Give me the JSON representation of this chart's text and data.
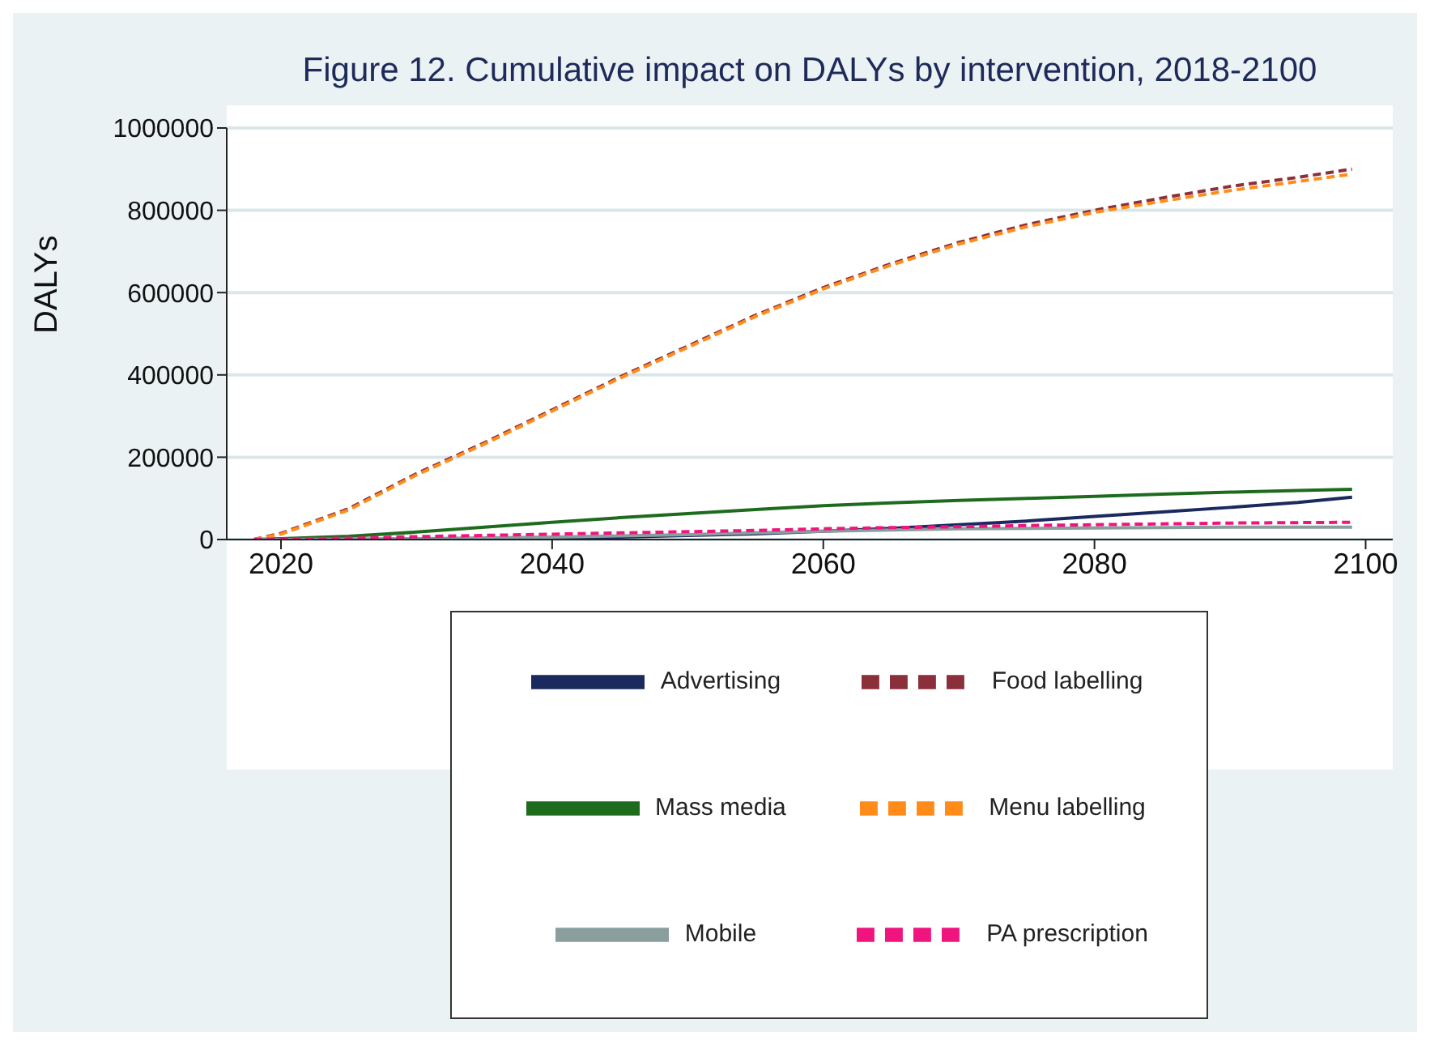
{
  "chart_data": {
    "type": "line",
    "title": "Figure 12. Cumulative impact on DALYs by intervention, 2018-2100",
    "ylabel": "DALYs",
    "x": [
      2018,
      2020,
      2025,
      2030,
      2035,
      2040,
      2045,
      2050,
      2055,
      2060,
      2065,
      2070,
      2075,
      2080,
      2085,
      2090,
      2095,
      2099
    ],
    "xlim": [
      2016,
      2102
    ],
    "xticks": [
      2020,
      2040,
      2060,
      2080,
      2100
    ],
    "ylim": [
      0,
      1000000
    ],
    "yticks": [
      0,
      200000,
      400000,
      600000,
      800000,
      1000000
    ],
    "grid": "y",
    "legend": "bottom",
    "marker": "none",
    "series": [
      {
        "name": "Advertising",
        "color": "#1a2a5e",
        "line_style": "solid",
        "values": [
          0,
          0,
          0,
          1000,
          2000,
          4000,
          6000,
          10000,
          14000,
          20000,
          27000,
          36000,
          45000,
          56000,
          67000,
          78000,
          90000,
          103000
        ]
      },
      {
        "name": "Food labelling",
        "color": "#8b2f3a",
        "line_style": "dashed",
        "values": [
          0,
          15000,
          75000,
          160000,
          235000,
          315000,
          395000,
          470000,
          545000,
          612000,
          670000,
          722000,
          765000,
          800000,
          830000,
          858000,
          880000,
          900000
        ]
      },
      {
        "name": "Mass media",
        "color": "#1e6b1e",
        "line_style": "solid",
        "values": [
          0,
          2000,
          8000,
          18000,
          30000,
          42000,
          53000,
          63000,
          73000,
          82000,
          89000,
          95000,
          100000,
          105000,
          110000,
          115000,
          119000,
          122000
        ]
      },
      {
        "name": "Menu labelling",
        "color": "#ff8c1a",
        "line_style": "dashed",
        "values": [
          0,
          13000,
          72000,
          157000,
          232000,
          312000,
          392000,
          467000,
          542000,
          609000,
          667000,
          718000,
          760000,
          795000,
          822000,
          848000,
          870000,
          888000
        ]
      },
      {
        "name": "Mobile",
        "color": "#8a9e9e",
        "line_style": "solid",
        "values": [
          0,
          0,
          1000,
          2000,
          4000,
          6000,
          9000,
          12000,
          16000,
          20000,
          23000,
          26000,
          27000,
          28000,
          29000,
          30000,
          30000,
          30000
        ]
      },
      {
        "name": "PA prescription",
        "color": "#f0147f",
        "line_style": "dashed",
        "values": [
          0,
          1000,
          3000,
          7000,
          10000,
          13000,
          16000,
          19000,
          22000,
          26000,
          29000,
          31000,
          34000,
          36000,
          38000,
          40000,
          41000,
          42000
        ]
      }
    ]
  }
}
